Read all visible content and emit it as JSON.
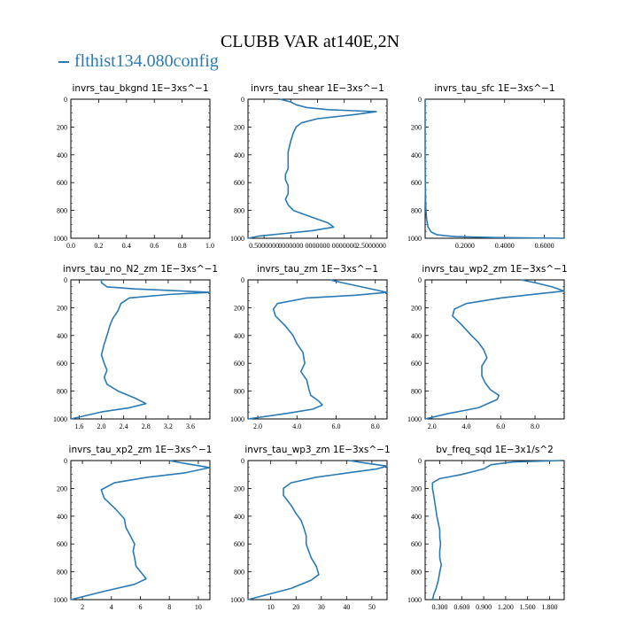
{
  "figure": {
    "title": "CLUBB VAR at140E,2N",
    "legend": "flthist134.080config",
    "line_color": "#2a7ab5"
  },
  "chart_data": [
    {
      "type": "line",
      "title": "invrs_tau_bkgnd   1E−3xs^−1",
      "xlim": [
        0,
        1
      ],
      "ylim": [
        1000,
        0
      ],
      "xticks": [
        "0.0",
        "0.2",
        "0.4",
        "0.6",
        "0.8",
        "1.0"
      ],
      "xtick_values": [
        0,
        0.2,
        0.4,
        0.6,
        0.8,
        1.0
      ],
      "yticks": [
        0,
        200,
        400,
        600,
        800,
        1000
      ],
      "series": [
        {
          "x": [],
          "y": []
        }
      ]
    },
    {
      "type": "line",
      "title": "invrs_tau_shear   1E−3xs^−1",
      "xlim": [
        0.2,
        2.8
      ],
      "ylim": [
        1000,
        0
      ],
      "xticks": [
        "0.5000000",
        "0000000",
        "0000000",
        "0000000",
        "2.5000000"
      ],
      "xtick_values": [
        0.5,
        1.0,
        1.5,
        2.0,
        2.5
      ],
      "yticks": [
        0,
        200,
        400,
        600,
        800,
        1000
      ],
      "series": [
        {
          "x": [
            0.8,
            1.0,
            1.1,
            1.3,
            1.7,
            2.6,
            2.2,
            1.5,
            1.2,
            1.1,
            1.05,
            1.0,
            0.95,
            0.95,
            0.95,
            0.9,
            0.9,
            0.95,
            0.95,
            0.9,
            0.95,
            1.05,
            1.4,
            1.7,
            1.8,
            1.4,
            0.9,
            0.4,
            0.2
          ],
          "y": [
            0,
            20,
            40,
            60,
            75,
            90,
            110,
            140,
            170,
            200,
            240,
            300,
            380,
            430,
            500,
            540,
            580,
            620,
            680,
            720,
            760,
            800,
            850,
            890,
            920,
            945,
            965,
            985,
            1000
          ]
        }
      ]
    },
    {
      "type": "line",
      "title": "invrs_tau_sfc   1E−3xs^−1",
      "xlim": [
        0,
        0.7
      ],
      "ylim": [
        1000,
        0
      ],
      "xticks": [
        "0.2000",
        "0.4000",
        "0.6000"
      ],
      "xtick_values": [
        0.2,
        0.4,
        0.6
      ],
      "yticks": [
        0,
        200,
        400,
        600,
        800,
        1000
      ],
      "series": [
        {
          "x": [
            0,
            0,
            0,
            0.001,
            0.002,
            0.004,
            0.008,
            0.015,
            0.03,
            0.06,
            0.15,
            0.35,
            0.7
          ],
          "y": [
            0,
            200,
            400,
            600,
            700,
            800,
            870,
            920,
            955,
            975,
            988,
            995,
            1000
          ]
        }
      ]
    },
    {
      "type": "line",
      "title": "invrs_tau_no_N2_zm   1E−3xs^−1",
      "xlim": [
        1.45,
        3.95
      ],
      "ylim": [
        1000,
        0
      ],
      "xticks": [
        "1.6",
        "2.0",
        "2.4",
        "2.8",
        "3.2",
        "3.6"
      ],
      "xtick_values": [
        1.6,
        2.0,
        2.4,
        2.8,
        3.2,
        3.6
      ],
      "yticks": [
        0,
        200,
        400,
        600,
        800,
        1000
      ],
      "series": [
        {
          "x": [
            2.0,
            2.0,
            2.1,
            2.6,
            3.2,
            3.95,
            3.2,
            2.5,
            2.35,
            2.3,
            2.2,
            2.15,
            2.1,
            2.05,
            2.0,
            2.05,
            2.1,
            2.05,
            2.1,
            2.3,
            2.6,
            2.8,
            2.5,
            2.0,
            1.45
          ],
          "y": [
            0,
            20,
            50,
            65,
            75,
            90,
            105,
            130,
            170,
            220,
            280,
            330,
            400,
            460,
            540,
            600,
            650,
            700,
            750,
            800,
            850,
            890,
            920,
            950,
            1000
          ]
        }
      ]
    },
    {
      "type": "line",
      "title": "invrs_tau_zm   1E−3xs^−1",
      "xlim": [
        1.5,
        8.6
      ],
      "ylim": [
        1000,
        0
      ],
      "xticks": [
        "2.0",
        "4.0",
        "6.0",
        "8.0"
      ],
      "xtick_values": [
        2,
        4,
        6,
        8
      ],
      "yticks": [
        0,
        200,
        400,
        600,
        800,
        1000
      ],
      "series": [
        {
          "x": [
            5.7,
            6.3,
            7.3,
            8.6,
            7.0,
            4.5,
            3.0,
            2.8,
            2.9,
            3.4,
            3.8,
            4.0,
            4.3,
            4.4,
            4.2,
            4.5,
            4.6,
            4.7,
            5.1,
            5.3,
            4.8,
            3.5,
            1.5
          ],
          "y": [
            0,
            20,
            50,
            90,
            110,
            130,
            170,
            210,
            260,
            330,
            400,
            460,
            520,
            600,
            660,
            720,
            780,
            830,
            870,
            900,
            930,
            960,
            1000
          ]
        }
      ]
    },
    {
      "type": "line",
      "title": "invrs_tau_wp2_zm   1E−3xs^−1",
      "xlim": [
        1.6,
        9.7
      ],
      "ylim": [
        1000,
        0
      ],
      "xticks": [
        "2.0",
        "4.0",
        "6.0",
        "8.0"
      ],
      "xtick_values": [
        2,
        4,
        6,
        8
      ],
      "yticks": [
        0,
        200,
        400,
        600,
        800,
        1000
      ],
      "series": [
        {
          "x": [
            7.2,
            8.0,
            9.0,
            9.7,
            8.2,
            6.0,
            4.0,
            3.3,
            3.2,
            3.7,
            4.3,
            4.7,
            5.0,
            5.2,
            4.9,
            4.9,
            5.1,
            5.4,
            5.9,
            5.8,
            4.7,
            3.0,
            1.6
          ],
          "y": [
            0,
            20,
            50,
            80,
            100,
            130,
            170,
            210,
            260,
            320,
            400,
            450,
            500,
            560,
            620,
            690,
            740,
            790,
            830,
            860,
            920,
            960,
            1000
          ]
        }
      ]
    },
    {
      "type": "line",
      "title": "invrs_tau_xp2_zm   1E−3xs^−1",
      "xlim": [
        1.2,
        10.8
      ],
      "ylim": [
        1000,
        0
      ],
      "xticks": [
        "2",
        "4",
        "6",
        "8",
        "10"
      ],
      "xtick_values": [
        2,
        4,
        6,
        8,
        10
      ],
      "yticks": [
        0,
        200,
        400,
        600,
        800,
        1000
      ],
      "series": [
        {
          "x": [
            8.0,
            9.0,
            10.8,
            9.0,
            6.5,
            4.2,
            3.3,
            3.5,
            4.3,
            4.9,
            5.0,
            5.3,
            5.6,
            5.5,
            5.6,
            5.7,
            6.1,
            6.4,
            5.6,
            3.5,
            1.2
          ],
          "y": [
            0,
            20,
            50,
            90,
            120,
            160,
            210,
            270,
            350,
            420,
            480,
            540,
            600,
            650,
            700,
            760,
            810,
            850,
            890,
            940,
            1000
          ]
        }
      ]
    },
    {
      "type": "line",
      "title": "invrs_tau_wp3_zm   1E−3xs^−1",
      "xlim": [
        1,
        56
      ],
      "ylim": [
        1000,
        0
      ],
      "xticks": [
        "10",
        "20",
        "30",
        "40",
        "50"
      ],
      "xtick_values": [
        10,
        20,
        30,
        40,
        50
      ],
      "yticks": [
        0,
        200,
        400,
        600,
        800,
        1000
      ],
      "series": [
        {
          "x": [
            41,
            48,
            56,
            52,
            40,
            28,
            18,
            15,
            15,
            18,
            20,
            22,
            23,
            24,
            24,
            25,
            26,
            28,
            29,
            26,
            18,
            1
          ],
          "y": [
            0,
            20,
            40,
            60,
            90,
            120,
            160,
            200,
            250,
            320,
            380,
            430,
            480,
            540,
            600,
            650,
            700,
            760,
            820,
            860,
            920,
            1000
          ]
        }
      ]
    },
    {
      "type": "line",
      "title": "bv_freq_sqd   1E−3x1/s^2",
      "xlim": [
        0.1,
        2.0
      ],
      "ylim": [
        1000,
        0
      ],
      "xticks": [
        "0.300",
        "0.600",
        "0.900",
        "1.200",
        "1.500",
        "1.800"
      ],
      "xtick_values": [
        0.3,
        0.6,
        0.9,
        1.2,
        1.5,
        1.8
      ],
      "yticks": [
        0,
        200,
        400,
        600,
        800,
        1000
      ],
      "series": [
        {
          "x": [
            1.95,
            1.3,
            1.0,
            0.9,
            0.6,
            0.3,
            0.2,
            0.2,
            0.22,
            0.24,
            0.26,
            0.28,
            0.3,
            0.3,
            0.31,
            0.3,
            0.3,
            0.32,
            0.3,
            0.28,
            0.25,
            0.22,
            0.2
          ],
          "y": [
            0,
            10,
            30,
            60,
            100,
            130,
            160,
            200,
            260,
            330,
            400,
            450,
            500,
            550,
            600,
            650,
            700,
            750,
            800,
            860,
            920,
            960,
            1000
          ]
        }
      ]
    }
  ]
}
